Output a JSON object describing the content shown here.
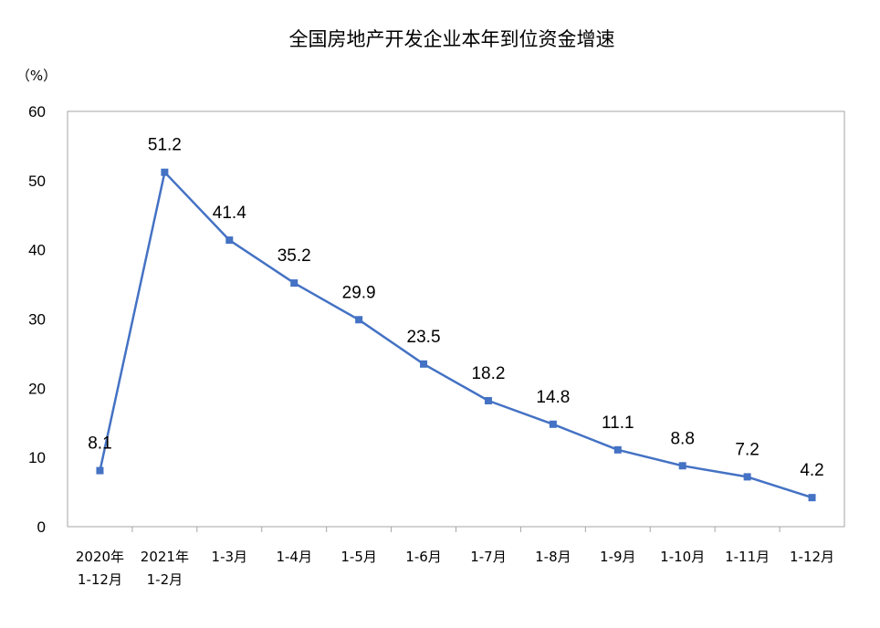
{
  "chart_data": {
    "type": "line",
    "title": "全国房地产开发企业本年到位资金增速",
    "ylabel": "（%）",
    "xlabel": "",
    "ylim": [
      0,
      60
    ],
    "yticks": [
      "0",
      "10",
      "20",
      "30",
      "40",
      "50",
      "60"
    ],
    "grid": false,
    "categories": [
      [
        "2020年",
        "1-12月"
      ],
      [
        "2021年",
        "1-2月"
      ],
      [
        "1-3月"
      ],
      [
        "1-4月"
      ],
      [
        "1-5月"
      ],
      [
        "1-6月"
      ],
      [
        "1-7月"
      ],
      [
        "1-8月"
      ],
      [
        "1-9月"
      ],
      [
        "1-10月"
      ],
      [
        "1-11月"
      ],
      [
        "1-12月"
      ]
    ],
    "series": [
      {
        "values": [
          8.1,
          51.2,
          41.4,
          35.2,
          29.9,
          23.5,
          18.2,
          14.8,
          11.1,
          8.8,
          7.2,
          4.2
        ],
        "labels": [
          "8.1",
          "51.2",
          "41.4",
          "35.2",
          "29.9",
          "23.5",
          "18.2",
          "14.8",
          "11.1",
          "8.8",
          "7.2",
          "4.2"
        ],
        "color": "#4472c4"
      }
    ]
  }
}
